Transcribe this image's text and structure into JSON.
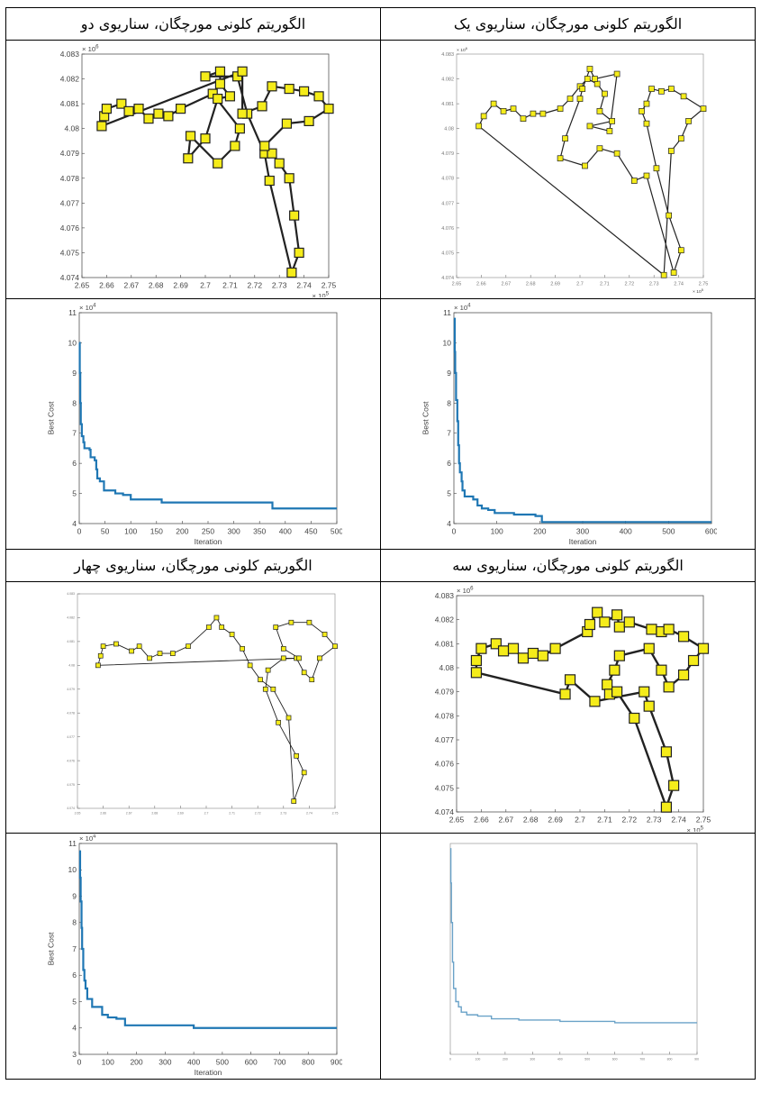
{
  "headers": [
    "الگوریتم کلونی مورچگان، سناریوی یک",
    "الگوریتم کلونی مورچگان، سناریوی دو",
    "الگوریتم کلونی مورچگان، سناریوی سه",
    "الگوریتم کلونی مورچگان، سناریوی چهار"
  ],
  "chart_data": [
    {
      "id": "route-s2",
      "type": "scatter",
      "x_ticks": [
        "2.65",
        "2.66",
        "2.67",
        "2.68",
        "2.69",
        "2.7",
        "2.71",
        "2.72",
        "2.73",
        "2.74",
        "2.75"
      ],
      "y_ticks": [
        "4.074",
        "4.075",
        "4.076",
        "4.077",
        "4.078",
        "4.079",
        "4.08",
        "4.081",
        "4.082",
        "4.083"
      ],
      "x_exp": "× 10^5",
      "y_exp": "× 10^6",
      "xlim": [
        265000,
        275000
      ],
      "ylim": [
        4074000,
        4083000
      ],
      "tour": [
        [
          265800,
          4080100
        ],
        [
          265900,
          4080500
        ],
        [
          266000,
          4080800
        ],
        [
          266600,
          4081000
        ],
        [
          266900,
          4080700
        ],
        [
          267300,
          4080800
        ],
        [
          267700,
          4080400
        ],
        [
          268100,
          4080600
        ],
        [
          268500,
          4080500
        ],
        [
          269000,
          4080800
        ],
        [
          270300,
          4081400
        ],
        [
          271400,
          4080000
        ],
        [
          271200,
          4079300
        ],
        [
          270500,
          4078600
        ],
        [
          269400,
          4079700
        ],
        [
          269300,
          4078800
        ],
        [
          270000,
          4079600
        ],
        [
          270500,
          4081200
        ],
        [
          271000,
          4081300
        ],
        [
          270600,
          4081800
        ],
        [
          270600,
          4082300
        ],
        [
          270000,
          4082100
        ],
        [
          271300,
          4082100
        ],
        [
          271700,
          4080600
        ],
        [
          272400,
          4079000
        ],
        [
          272600,
          4077900
        ],
        [
          273500,
          4074200
        ],
        [
          273800,
          4075000
        ],
        [
          273600,
          4076500
        ],
        [
          273400,
          4078000
        ],
        [
          273000,
          4078600
        ],
        [
          272700,
          4079000
        ],
        [
          272400,
          4079300
        ],
        [
          273300,
          4080200
        ],
        [
          274200,
          4080300
        ],
        [
          275000,
          4080800
        ],
        [
          274600,
          4081300
        ],
        [
          274000,
          4081500
        ],
        [
          273400,
          4081600
        ],
        [
          272700,
          4081700
        ],
        [
          272300,
          4080900
        ],
        [
          271500,
          4080600
        ],
        [
          271500,
          4082300
        ],
        [
          265800,
          4080100
        ]
      ]
    },
    {
      "id": "route-s1",
      "type": "scatter",
      "x_ticks": [
        "2.65",
        "2.66",
        "2.67",
        "2.68",
        "2.69",
        "2.7",
        "2.71",
        "2.72",
        "2.73",
        "2.74",
        "2.75"
      ],
      "y_ticks": [
        "4.074",
        "4.075",
        "4.076",
        "4.077",
        "4.078",
        "4.079",
        "4.08",
        "4.081",
        "4.082",
        "4.083"
      ],
      "x_exp": "× 10^5",
      "y_exp": "× 10^6",
      "xlim": [
        265000,
        275000
      ],
      "ylim": [
        4074000,
        4083000
      ],
      "tour": [
        [
          265900,
          4080100
        ],
        [
          266100,
          4080500
        ],
        [
          266500,
          4081000
        ],
        [
          266900,
          4080700
        ],
        [
          267300,
          4080800
        ],
        [
          267700,
          4080400
        ],
        [
          268100,
          4080600
        ],
        [
          268500,
          4080600
        ],
        [
          269200,
          4080800
        ],
        [
          269600,
          4081200
        ],
        [
          270000,
          4081700
        ],
        [
          270300,
          4082000
        ],
        [
          270700,
          4081800
        ],
        [
          271000,
          4081400
        ],
        [
          270800,
          4080700
        ],
        [
          271300,
          4080300
        ],
        [
          270400,
          4080100
        ],
        [
          271200,
          4079900
        ],
        [
          271500,
          4082200
        ],
        [
          270600,
          4082000
        ],
        [
          270400,
          4082400
        ],
        [
          270100,
          4081600
        ],
        [
          270000,
          4081200
        ],
        [
          269400,
          4079600
        ],
        [
          269200,
          4078800
        ],
        [
          270200,
          4078500
        ],
        [
          270800,
          4079200
        ],
        [
          271500,
          4079000
        ],
        [
          272200,
          4077900
        ],
        [
          272700,
          4078100
        ],
        [
          273800,
          4074200
        ],
        [
          274100,
          4075100
        ],
        [
          273600,
          4076500
        ],
        [
          273100,
          4078400
        ],
        [
          272700,
          4080200
        ],
        [
          272500,
          4080700
        ],
        [
          272700,
          4081000
        ],
        [
          272900,
          4081600
        ],
        [
          273300,
          4081500
        ],
        [
          273700,
          4081600
        ],
        [
          274200,
          4081300
        ],
        [
          275000,
          4080800
        ],
        [
          274400,
          4080300
        ],
        [
          274100,
          4079600
        ],
        [
          273700,
          4079100
        ],
        [
          273400,
          4074100
        ],
        [
          265900,
          4080100
        ]
      ]
    },
    {
      "id": "cost-s2",
      "type": "line",
      "xlabel": "Iteration",
      "ylabel": "Best Cost",
      "x_ticks": [
        "0",
        "50",
        "100",
        "150",
        "200",
        "250",
        "300",
        "350",
        "400",
        "450",
        "500"
      ],
      "y_ticks": [
        "4",
        "5",
        "6",
        "7",
        "8",
        "9",
        "10",
        "11"
      ],
      "y_exp": "× 10^4",
      "xlim": [
        0,
        500
      ],
      "ylim": [
        40000,
        110000
      ],
      "series": [
        {
          "values": [
            [
              0,
              100000
            ],
            [
              1,
              90000
            ],
            [
              2,
              80000
            ],
            [
              3,
              73000
            ],
            [
              5,
              69000
            ],
            [
              8,
              67000
            ],
            [
              10,
              65000
            ],
            [
              20,
              64500
            ],
            [
              22,
              62000
            ],
            [
              30,
              61000
            ],
            [
              33,
              58000
            ],
            [
              35,
              55000
            ],
            [
              40,
              54000
            ],
            [
              48,
              51000
            ],
            [
              70,
              50000
            ],
            [
              85,
              49500
            ],
            [
              100,
              48000
            ],
            [
              160,
              47000
            ],
            [
              375,
              45000
            ],
            [
              500,
              45000
            ]
          ]
        }
      ]
    },
    {
      "id": "cost-s1",
      "type": "line",
      "xlabel": "Iteration",
      "ylabel": "Best Cost",
      "x_ticks": [
        "0",
        "100",
        "200",
        "300",
        "400",
        "500",
        "600"
      ],
      "y_ticks": [
        "4",
        "5",
        "6",
        "7",
        "8",
        "9",
        "10",
        "11"
      ],
      "y_exp": "× 10^4",
      "xlim": [
        0,
        600
      ],
      "ylim": [
        40000,
        110000
      ],
      "series": [
        {
          "values": [
            [
              0,
              108000
            ],
            [
              2,
              97000
            ],
            [
              3,
              90000
            ],
            [
              5,
              81000
            ],
            [
              8,
              74000
            ],
            [
              10,
              66000
            ],
            [
              12,
              60000
            ],
            [
              14,
              57000
            ],
            [
              18,
              54000
            ],
            [
              20,
              51000
            ],
            [
              25,
              49000
            ],
            [
              45,
              48000
            ],
            [
              55,
              46000
            ],
            [
              65,
              45000
            ],
            [
              80,
              44500
            ],
            [
              95,
              43500
            ],
            [
              140,
              43000
            ],
            [
              190,
              42500
            ],
            [
              205,
              40500
            ],
            [
              600,
              40500
            ]
          ]
        }
      ]
    },
    {
      "id": "route-s4",
      "type": "scatter",
      "x_ticks": [
        "2.65",
        "2.66",
        "2.67",
        "2.68",
        "2.69",
        "2.7",
        "2.71",
        "2.72",
        "2.73",
        "2.74",
        "2.75"
      ],
      "y_ticks": [
        "4.074",
        "4.075",
        "4.076",
        "4.077",
        "4.078",
        "4.079",
        "4.08",
        "4.081",
        "4.082",
        "4.083"
      ],
      "xlim": [
        265000,
        275000
      ],
      "ylim": [
        4074000,
        4083000
      ],
      "tour": [
        [
          265800,
          4080000
        ],
        [
          265900,
          4080400
        ],
        [
          266000,
          4080800
        ],
        [
          266500,
          4080900
        ],
        [
          267100,
          4080600
        ],
        [
          267400,
          4080800
        ],
        [
          267800,
          4080300
        ],
        [
          268200,
          4080500
        ],
        [
          268700,
          4080500
        ],
        [
          269300,
          4080800
        ],
        [
          270100,
          4081600
        ],
        [
          270400,
          4082000
        ],
        [
          270600,
          4081600
        ],
        [
          271000,
          4081300
        ],
        [
          271400,
          4080700
        ],
        [
          271700,
          4080000
        ],
        [
          272100,
          4079400
        ],
        [
          272600,
          4079000
        ],
        [
          273200,
          4077800
        ],
        [
          273400,
          4074300
        ],
        [
          273800,
          4075500
        ],
        [
          273500,
          4076200
        ],
        [
          272800,
          4077600
        ],
        [
          272300,
          4079000
        ],
        [
          272400,
          4079800
        ],
        [
          273000,
          4080300
        ],
        [
          273500,
          4080300
        ],
        [
          273800,
          4079700
        ],
        [
          274100,
          4079400
        ],
        [
          274400,
          4080300
        ],
        [
          275000,
          4080800
        ],
        [
          274600,
          4081300
        ],
        [
          274000,
          4081800
        ],
        [
          273300,
          4081800
        ],
        [
          272700,
          4081600
        ],
        [
          273000,
          4080700
        ],
        [
          273600,
          4080300
        ],
        [
          265800,
          4080000
        ]
      ]
    },
    {
      "id": "route-s3",
      "type": "scatter",
      "x_ticks": [
        "2.65",
        "2.66",
        "2.67",
        "2.68",
        "2.69",
        "2.7",
        "2.71",
        "2.72",
        "2.73",
        "2.74",
        "2.75"
      ],
      "y_ticks": [
        "4.074",
        "4.075",
        "4.076",
        "4.077",
        "4.078",
        "4.079",
        "4.08",
        "4.081",
        "4.082",
        "4.083"
      ],
      "x_exp": "× 10^5",
      "y_exp": "× 10^6",
      "xlim": [
        265000,
        275000
      ],
      "ylim": [
        4074000,
        4083000
      ],
      "tour": [
        [
          265800,
          4079800
        ],
        [
          265800,
          4080300
        ],
        [
          266000,
          4080800
        ],
        [
          266600,
          4081000
        ],
        [
          266900,
          4080700
        ],
        [
          267300,
          4080800
        ],
        [
          267700,
          4080400
        ],
        [
          268100,
          4080600
        ],
        [
          268500,
          4080500
        ],
        [
          269000,
          4080800
        ],
        [
          270300,
          4081500
        ],
        [
          270400,
          4081800
        ],
        [
          270700,
          4082300
        ],
        [
          271000,
          4081900
        ],
        [
          271500,
          4082200
        ],
        [
          271600,
          4081700
        ],
        [
          272000,
          4081900
        ],
        [
          272900,
          4081600
        ],
        [
          273300,
          4081500
        ],
        [
          273600,
          4081600
        ],
        [
          274200,
          4081300
        ],
        [
          275000,
          4080800
        ],
        [
          274600,
          4080300
        ],
        [
          274200,
          4079700
        ],
        [
          273600,
          4079200
        ],
        [
          273300,
          4079900
        ],
        [
          272800,
          4080800
        ],
        [
          271600,
          4080500
        ],
        [
          271400,
          4079900
        ],
        [
          271100,
          4079300
        ],
        [
          271200,
          4078900
        ],
        [
          271500,
          4079000
        ],
        [
          272200,
          4077900
        ],
        [
          273500,
          4074200
        ],
        [
          273800,
          4075100
        ],
        [
          273500,
          4076500
        ],
        [
          272800,
          4078400
        ],
        [
          272600,
          4079000
        ],
        [
          270600,
          4078600
        ],
        [
          269600,
          4079500
        ],
        [
          269400,
          4078900
        ],
        [
          265800,
          4079800
        ]
      ]
    },
    {
      "id": "cost-s4",
      "type": "line",
      "xlabel": "Iteration",
      "ylabel": "Best Cost",
      "x_ticks": [
        "0",
        "100",
        "200",
        "300",
        "400",
        "500",
        "600",
        "700",
        "800",
        "900"
      ],
      "y_ticks": [
        "3",
        "4",
        "5",
        "6",
        "7",
        "8",
        "9",
        "10",
        "11"
      ],
      "y_exp": "× 10^4",
      "xlim": [
        0,
        900
      ],
      "ylim": [
        30000,
        110000
      ],
      "series": [
        {
          "values": [
            [
              0,
              107000
            ],
            [
              3,
              97000
            ],
            [
              5,
              88000
            ],
            [
              8,
              78000
            ],
            [
              10,
              70000
            ],
            [
              14,
              62000
            ],
            [
              18,
              58000
            ],
            [
              22,
              55000
            ],
            [
              28,
              51000
            ],
            [
              45,
              48000
            ],
            [
              80,
              45000
            ],
            [
              100,
              44000
            ],
            [
              130,
              43500
            ],
            [
              160,
              41000
            ],
            [
              400,
              40000
            ],
            [
              900,
              40000
            ]
          ]
        }
      ]
    },
    {
      "id": "cost-s3",
      "type": "line",
      "x_ticks": [
        "0",
        "100",
        "200",
        "300",
        "400",
        "500",
        "600",
        "700",
        "800",
        "900"
      ],
      "xlim": [
        0,
        900
      ],
      "ylim": [
        30000,
        110000
      ],
      "series": [
        {
          "values": [
            [
              0,
              108000
            ],
            [
              2,
              95000
            ],
            [
              4,
              80000
            ],
            [
              8,
              65000
            ],
            [
              12,
              55000
            ],
            [
              20,
              50000
            ],
            [
              30,
              48000
            ],
            [
              40,
              46000
            ],
            [
              60,
              45000
            ],
            [
              100,
              44500
            ],
            [
              150,
              43500
            ],
            [
              250,
              43000
            ],
            [
              400,
              42500
            ],
            [
              600,
              42000
            ],
            [
              900,
              42000
            ]
          ]
        }
      ]
    }
  ]
}
